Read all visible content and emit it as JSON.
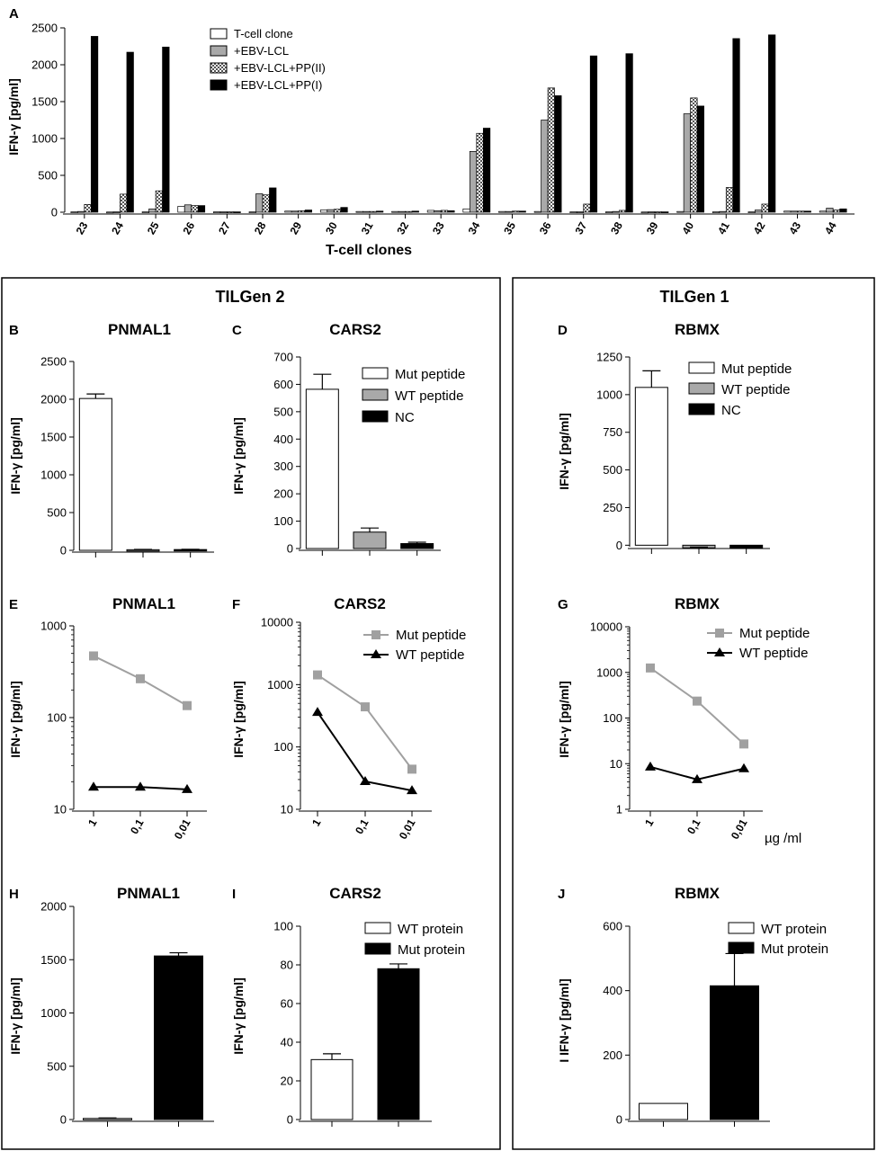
{
  "groups": [
    {
      "title": "TILGen 2"
    },
    {
      "title": "TILGen 1"
    }
  ],
  "chart_data": [
    {
      "id": "A",
      "letter": "A",
      "type": "bar",
      "title": "",
      "xlabel": "T-cell clones",
      "ylabel": "IFN-γ [pg/ml]",
      "ylim": [
        0,
        2500
      ],
      "yticks": [
        "0",
        "500",
        "1000",
        "1500",
        "2000",
        "2500"
      ],
      "categories": [
        "23",
        "24",
        "25",
        "26",
        "27",
        "28",
        "29",
        "30",
        "31",
        "32",
        "33",
        "34",
        "35",
        "36",
        "37",
        "38",
        "39",
        "40",
        "41",
        "42",
        "43",
        "44"
      ],
      "legend": {
        "position": "top-center"
      },
      "series": [
        {
          "name": "T-cell clone",
          "fill": "white",
          "values": [
            5,
            3,
            5,
            80,
            5,
            5,
            15,
            30,
            10,
            10,
            25,
            45,
            10,
            10,
            5,
            5,
            3,
            10,
            5,
            5,
            15,
            15
          ]
        },
        {
          "name": "+EBV-LCL",
          "fill": "gray",
          "values": [
            10,
            5,
            45,
            100,
            5,
            250,
            15,
            35,
            10,
            10,
            20,
            825,
            10,
            1250,
            5,
            10,
            5,
            1335,
            10,
            30,
            15,
            55
          ]
        },
        {
          "name": "+EBV-LCL+PP(II)",
          "fill": "checker",
          "values": [
            105,
            245,
            290,
            90,
            5,
            235,
            20,
            40,
            10,
            10,
            25,
            1070,
            15,
            1685,
            110,
            25,
            5,
            1550,
            335,
            110,
            15,
            30
          ]
        },
        {
          "name": "+EBV-LCL+PP(I)",
          "fill": "black",
          "values": [
            2385,
            2170,
            2240,
            90,
            5,
            330,
            30,
            65,
            15,
            15,
            20,
            1140,
            15,
            1580,
            2120,
            2150,
            5,
            1440,
            2355,
            2405,
            15,
            45
          ]
        }
      ]
    },
    {
      "id": "B",
      "letter": "B",
      "type": "bar",
      "title": "PNMAL1",
      "ylabel": "IFN-γ [pg/ml]",
      "ylim": [
        0,
        2500
      ],
      "yticks": [
        "0",
        "500",
        "1000",
        "1500",
        "2000",
        "2500"
      ],
      "bars": [
        {
          "fill": "white",
          "value": 2010,
          "err": 60
        },
        {
          "fill": "gray",
          "value": 8,
          "err": 4
        },
        {
          "fill": "black",
          "value": 10,
          "err": 4
        }
      ]
    },
    {
      "id": "C",
      "letter": "C",
      "type": "bar",
      "title": "CARS2",
      "ylabel": "IFN-γ [pg/ml]",
      "ylim": [
        0,
        700
      ],
      "yticks": [
        "0",
        "100",
        "200",
        "300",
        "400",
        "500",
        "600",
        "700"
      ],
      "legend": {
        "position": "top-right"
      },
      "bars": [
        {
          "name": "Mut peptide",
          "fill": "white",
          "value": 582,
          "err": 55
        },
        {
          "name": "WT peptide",
          "fill": "gray",
          "value": 60,
          "err": 15
        },
        {
          "name": "NC",
          "fill": "black",
          "value": 18,
          "err": 5
        }
      ]
    },
    {
      "id": "D",
      "letter": "D",
      "type": "bar",
      "title": "RBMX",
      "ylabel": "IFN-γ [pg/ml]",
      "ylim": [
        -10,
        1250
      ],
      "yticks": [
        "0",
        "250",
        "500",
        "750",
        "1000",
        "1250"
      ],
      "legend": {
        "position": "top-right"
      },
      "bars": [
        {
          "name": "Mut peptide",
          "fill": "white",
          "value": 1048,
          "err": 110
        },
        {
          "name": "WT peptide",
          "fill": "gray",
          "value": -18,
          "err": 6
        },
        {
          "name": "NC",
          "fill": "black",
          "value": -20,
          "err": 4
        }
      ]
    },
    {
      "id": "E",
      "letter": "E",
      "type": "line",
      "title": "PNMAL1",
      "ylabel": "IFN-γ [pg/ml]",
      "yscale": "log",
      "ylim": [
        10,
        1000
      ],
      "yticks": [
        "10",
        "100",
        "1000"
      ],
      "categories": [
        "1",
        "0,1",
        "0,01"
      ],
      "series": [
        {
          "name": "Mut peptide",
          "values": [
            470,
            265,
            135
          ]
        },
        {
          "name": "WT peptide",
          "values": [
            17.5,
            17.5,
            16.5
          ]
        }
      ]
    },
    {
      "id": "F",
      "letter": "F",
      "type": "line",
      "title": "CARS2",
      "ylabel": "IFN-γ [pg/ml]",
      "yscale": "log",
      "ylim": [
        10,
        10000
      ],
      "yticks": [
        "10",
        "100",
        "1000",
        "10000"
      ],
      "categories": [
        "1",
        "0,1",
        "0,01"
      ],
      "legend": {
        "position": "top-right"
      },
      "series": [
        {
          "name": "Mut peptide",
          "values": [
            1430,
            440,
            44
          ]
        },
        {
          "name": "WT peptide",
          "values": [
            360,
            28,
            20
          ]
        }
      ]
    },
    {
      "id": "G",
      "letter": "G",
      "type": "line",
      "title": "RBMX",
      "ylabel": "IFN-γ [pg/ml]",
      "xunit": "µg /ml",
      "yscale": "log",
      "ylim": [
        1,
        10000
      ],
      "yticks": [
        "1",
        "10",
        "100",
        "1000",
        "10000"
      ],
      "categories": [
        "1",
        "0,1",
        "0,01"
      ],
      "legend": {
        "position": "top-right"
      },
      "series": [
        {
          "name": "Mut peptide",
          "values": [
            1250,
            235,
            27
          ]
        },
        {
          "name": "WT peptide",
          "values": [
            8.5,
            4.5,
            7.8
          ]
        }
      ]
    },
    {
      "id": "H",
      "letter": "H",
      "type": "bar",
      "title": "PNMAL1",
      "ylabel": "IFN-γ [pg/ml]",
      "ylim": [
        0,
        2000
      ],
      "yticks": [
        "0",
        "500",
        "1000",
        "1500",
        "2000"
      ],
      "bars": [
        {
          "fill": "white",
          "value": 10,
          "err": 5
        },
        {
          "fill": "black",
          "value": 1535,
          "err": 30
        }
      ]
    },
    {
      "id": "I",
      "letter": "I",
      "type": "bar",
      "title": "CARS2",
      "ylabel": "IFN-γ [pg/ml]",
      "ylim": [
        0,
        100
      ],
      "yticks": [
        "0",
        "20",
        "40",
        "60",
        "80",
        "100"
      ],
      "legend": {
        "position": "top-right"
      },
      "bars": [
        {
          "name": "WT protein",
          "fill": "white",
          "value": 31,
          "err": 3
        },
        {
          "name": "Mut protein",
          "fill": "black",
          "value": 78,
          "err": 2.5
        }
      ]
    },
    {
      "id": "J",
      "letter": "J",
      "type": "bar",
      "title": "RBMX",
      "ylabel": "I IFN-γ [pg/ml]",
      "ylim": [
        0,
        600
      ],
      "yticks": [
        "0",
        "200",
        "400",
        "600"
      ],
      "legend": {
        "position": "top-right"
      },
      "bars": [
        {
          "name": "WT protein",
          "fill": "white",
          "value": 50,
          "err": 0
        },
        {
          "name": "Mut protein",
          "fill": "black",
          "value": 415,
          "err": 100
        }
      ]
    }
  ]
}
